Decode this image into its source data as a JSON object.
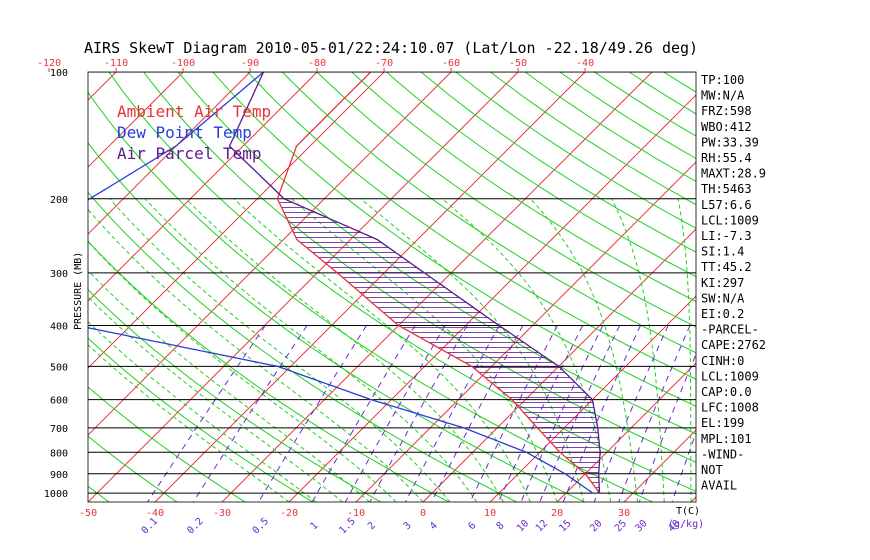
{
  "chart_data": {
    "type": "skewt",
    "title": "AIRS SkewT Diagram 2010-05-01/22:24:10.07 (Lat/Lon -22.18/49.26 deg)",
    "ylabel": "PRESSURE (MB)",
    "xlabel_bottom": "T(C)",
    "mixing_ratio_label": "(g/kg)",
    "pressure_ticks": [
      100,
      200,
      300,
      400,
      500,
      600,
      700,
      800,
      900,
      1000
    ],
    "top_temp_ticks": [
      -120,
      -110,
      -100,
      -90,
      -80,
      -70,
      -60,
      -50,
      -40
    ],
    "bottom_temp_ticks": [
      -50,
      -40,
      -30,
      -20,
      -10,
      0,
      10,
      20,
      30
    ],
    "mixing_ratio_ticks": [
      "0.1",
      "0.2",
      "0.5",
      "1",
      "1.5",
      "2",
      "3",
      "4",
      "6",
      "8",
      "10",
      "12",
      "15",
      "20",
      "25",
      "30",
      "40"
    ],
    "legend": [
      {
        "label": "Ambient Air Temp",
        "color": "#e8333a"
      },
      {
        "label": "Dew Point Temp",
        "color": "#2a3bd6"
      },
      {
        "label": "Air Parcel Temp",
        "color": "#5a1a8c"
      }
    ],
    "series": [
      {
        "name": "Ambient Air Temp",
        "color": "#e8333a",
        "points": [
          [
            100,
            -72
          ],
          [
            150,
            -72
          ],
          [
            200,
            -67
          ],
          [
            250,
            -58
          ],
          [
            300,
            -47
          ],
          [
            400,
            -30
          ],
          [
            500,
            -13
          ],
          [
            600,
            -2
          ],
          [
            700,
            6
          ],
          [
            800,
            13
          ],
          [
            900,
            20
          ],
          [
            1000,
            25
          ]
        ]
      },
      {
        "name": "Dew Point Temp",
        "color": "#2a3bd6",
        "points": [
          [
            100,
            -88
          ],
          [
            150,
            -90
          ],
          [
            200,
            -95
          ],
          [
            250,
            -100
          ],
          [
            300,
            -100
          ],
          [
            400,
            -78
          ],
          [
            500,
            -42
          ],
          [
            600,
            -23
          ],
          [
            700,
            -5
          ],
          [
            800,
            8
          ],
          [
            900,
            17
          ],
          [
            1000,
            24
          ]
        ]
      },
      {
        "name": "Air Parcel Temp",
        "color": "#5a1a8c",
        "points": [
          [
            100,
            -88
          ],
          [
            150,
            -82
          ],
          [
            200,
            -66
          ],
          [
            250,
            -46
          ],
          [
            300,
            -34
          ],
          [
            400,
            -15
          ],
          [
            500,
            0
          ],
          [
            600,
            10
          ],
          [
            700,
            15
          ],
          [
            800,
            19
          ],
          [
            900,
            22
          ],
          [
            1000,
            25
          ]
        ]
      }
    ],
    "stats": [
      "TP:100",
      "MW:N/A",
      "FRZ:598",
      "WBO:412",
      "PW:33.39",
      "RH:55.4",
      "MAXT:28.9",
      "TH:5463",
      "L57:6.6",
      "LCL:1009",
      "LI:-7.3",
      "SI:1.4",
      "TT:45.2",
      "KI:297",
      "SW:N/A",
      "EI:0.2",
      "-PARCEL-",
      "CAPE:2762",
      "CINH:0",
      "LCL:1009",
      "CAP:0.0",
      "LFC:1008",
      "EL:199",
      "MPL:101",
      "-WIND-",
      "NOT",
      "AVAIL"
    ]
  },
  "colors": {
    "isotherm": "#e8333a",
    "dry_adiabat": "#1fd11f",
    "moist_adiabat": "#1fd11f",
    "mixing_ratio": "#6a2bd0",
    "isobar": "#000000",
    "background": "#ffffff"
  }
}
